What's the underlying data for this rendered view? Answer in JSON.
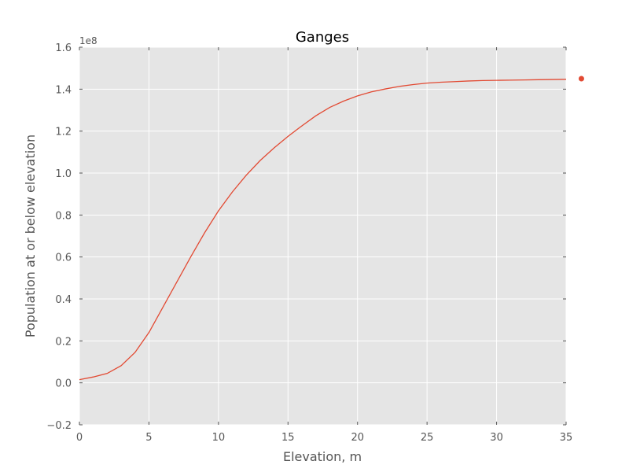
{
  "chart_data": {
    "type": "line",
    "title": "Ganges",
    "xlabel": "Elevation, m",
    "ylabel": "Population at or below elevation",
    "y_scale_label": "1e8",
    "xlim": [
      0,
      35
    ],
    "ylim": [
      -0.2,
      1.6
    ],
    "x_ticks": [
      0,
      5,
      10,
      15,
      20,
      25,
      30,
      35
    ],
    "x_tick_labels": [
      "0",
      "5",
      "10",
      "15",
      "20",
      "25",
      "30",
      "35"
    ],
    "y_ticks": [
      -0.2,
      0.0,
      0.2,
      0.4,
      0.6,
      0.8,
      1.0,
      1.2,
      1.4,
      1.6
    ],
    "y_tick_labels": [
      "−0.2",
      "0.0",
      "0.2",
      "0.4",
      "0.6",
      "0.8",
      "1.0",
      "1.2",
      "1.4",
      "1.6"
    ],
    "grid": true,
    "background": "#e5e5e5",
    "series": [
      {
        "color": "#e24a33",
        "x": [
          0,
          1,
          2,
          3,
          4,
          5,
          6,
          7,
          8,
          9,
          10,
          11,
          12,
          13,
          14,
          15,
          16,
          17,
          18,
          19,
          20,
          21,
          22,
          23,
          24,
          25,
          26,
          27,
          28,
          29,
          30,
          31,
          32,
          33,
          34,
          35
        ],
        "y": [
          0.015,
          0.028,
          0.045,
          0.082,
          0.145,
          0.24,
          0.36,
          0.48,
          0.6,
          0.715,
          0.82,
          0.91,
          0.99,
          1.06,
          1.12,
          1.175,
          1.225,
          1.273,
          1.313,
          1.343,
          1.368,
          1.387,
          1.401,
          1.413,
          1.422,
          1.429,
          1.433,
          1.436,
          1.439,
          1.441,
          1.442,
          1.443,
          1.444,
          1.445,
          1.446,
          1.447
        ]
      }
    ],
    "outlier_marker": {
      "x": 36.1,
      "y": 1.45,
      "color": "#e24a33"
    }
  }
}
